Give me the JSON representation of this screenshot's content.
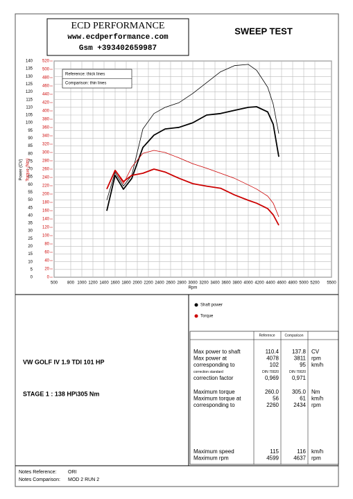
{
  "header": {
    "company": "ECD PERFORMANCE",
    "website": "www.ecdperformance.com",
    "phone": "Gsm +393402659987",
    "title": "SWEEP TEST"
  },
  "chart_data": {
    "type": "line",
    "ylabel": "Power (CV)",
    "y2label": "Torque (Nm)",
    "xlabel": "Rpm",
    "xlim": [
      500,
      5500
    ],
    "xticks": [
      500,
      800,
      1000,
      1200,
      1400,
      1600,
      1800,
      2000,
      2200,
      2400,
      2600,
      2800,
      3000,
      3200,
      3400,
      3600,
      3800,
      4000,
      4200,
      4400,
      4600,
      4800,
      5000,
      5200,
      5500
    ],
    "ylim": [
      0,
      140
    ],
    "yticks": [
      0,
      5,
      10,
      15,
      20,
      25,
      30,
      35,
      40,
      45,
      50,
      55,
      60,
      65,
      70,
      75,
      80,
      85,
      90,
      95,
      100,
      105,
      110,
      115,
      120,
      125,
      130,
      135,
      140
    ],
    "y2lim": [
      0,
      520
    ],
    "y2ticks": [
      0,
      20,
      40,
      60,
      80,
      100,
      120,
      140,
      160,
      180,
      200,
      220,
      240,
      260,
      280,
      300,
      320,
      340,
      360,
      380,
      400,
      420,
      440,
      460,
      480,
      500,
      520
    ],
    "grid": true,
    "line_key": [
      "Reference: thick lines",
      "Comparison: thin lines"
    ],
    "x": [
      1450,
      1600,
      1750,
      1900,
      2100,
      2300,
      2500,
      2750,
      3000,
      3250,
      3500,
      3750,
      4000,
      4150,
      4350,
      4450,
      4550
    ],
    "series": [
      {
        "color": "#000000",
        "line_style": "thick",
        "values": [
          43,
          66,
          57,
          64,
          84,
          92,
          96,
          97,
          100,
          105,
          106,
          108,
          110,
          110.4,
          107,
          99,
          78
        ]
      },
      {
        "color": "#000000",
        "line_style": "thin",
        "values": [
          50,
          68,
          59,
          66,
          96,
          106,
          110,
          113,
          119,
          126,
          133,
          137,
          137.8,
          134,
          123,
          112,
          93
        ]
      },
      {
        "color": "#cc0000",
        "line_style": "thick",
        "axis": "y2",
        "values": [
          212,
          257,
          230,
          245,
          250,
          260,
          253,
          238,
          225,
          219,
          214,
          198,
          185,
          178,
          165,
          150,
          125
        ]
      },
      {
        "color": "#cc0000",
        "line_style": "thin",
        "axis": "y2",
        "values": [
          212,
          257,
          225,
          265,
          298,
          305,
          300,
          287,
          273,
          262,
          250,
          238,
          222,
          212,
          195,
          178,
          145
        ]
      }
    ]
  },
  "legend": [
    {
      "label": "Shaft power",
      "color": "#000000"
    },
    {
      "label": "Torque",
      "color": "#cc0000"
    }
  ],
  "vehicle": "VW GOLF IV 1.9 TDI 101 HP",
  "stage": "STAGE 1 : 138 HP\\305 Nm",
  "table": {
    "columns": [
      "Reference",
      "Comparison"
    ],
    "groups": [
      [
        [
          "Max power to shaft",
          "110.4",
          "137.8",
          "CV"
        ],
        [
          "Max power at",
          "4078",
          "3811",
          "rpm"
        ],
        [
          "corresponding to",
          "102",
          "95",
          "km/h"
        ],
        [
          "correction standard",
          "DIN 70020",
          "DIN 70020"
        ],
        [
          "correction factor",
          "0,969",
          "0,971"
        ]
      ],
      [
        [
          "Maximum torque",
          "260.0",
          "305.0",
          "Nm"
        ],
        [
          "Maximum torque at",
          "56",
          "61",
          "km/h"
        ],
        [
          "corresponding to",
          "2260",
          "2434",
          "rpm"
        ]
      ],
      [
        [
          "Maximum speed",
          "115",
          "116",
          "km/h"
        ],
        [
          "Maximum rpm",
          "4599",
          "4637",
          "rpm"
        ]
      ]
    ]
  },
  "notes": [
    [
      "Notes Reference:",
      "ORI"
    ],
    [
      "Notes Comparison:",
      "MOD 2 RUN 2"
    ]
  ]
}
